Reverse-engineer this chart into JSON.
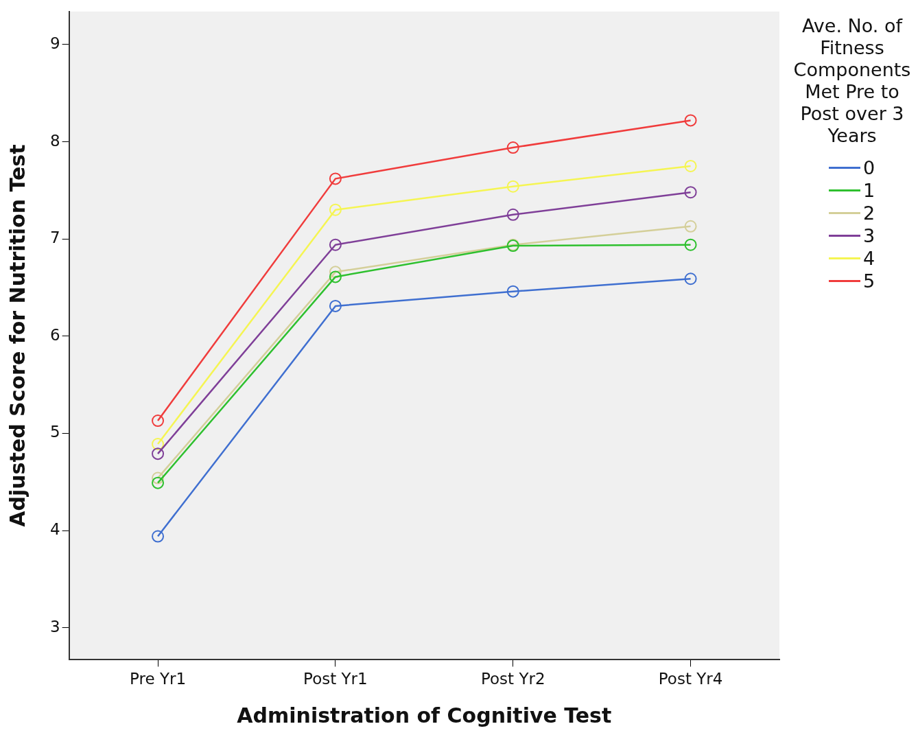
{
  "chart_data": {
    "type": "line",
    "xlabel": "Administration of Cognitive Test",
    "ylabel": "Adjusted Score for Nutrition Test",
    "legend_title": "Ave. No. of Fitness Components Met Pre to Post over 3 Years",
    "categories": [
      "Pre Yr1",
      "Post Yr1",
      "Post Yr2",
      "Post Yr4"
    ],
    "series": [
      {
        "name": "0",
        "color": "#3f6fd0",
        "values": [
          3.94,
          6.31,
          6.46,
          6.59
        ]
      },
      {
        "name": "1",
        "color": "#2ec02e",
        "values": [
          4.49,
          6.61,
          6.93,
          6.94
        ]
      },
      {
        "name": "2",
        "color": "#d4cf99",
        "values": [
          4.54,
          6.66,
          6.94,
          7.13
        ]
      },
      {
        "name": "3",
        "color": "#7f3f98",
        "values": [
          4.79,
          6.94,
          7.25,
          7.48
        ]
      },
      {
        "name": "4",
        "color": "#f5f552",
        "values": [
          4.89,
          7.3,
          7.54,
          7.75
        ]
      },
      {
        "name": "5",
        "color": "#f03c3c",
        "values": [
          5.13,
          7.62,
          7.94,
          8.22
        ]
      }
    ],
    "ylim": [
      2.67,
      9.34
    ],
    "yticks": [
      3,
      4,
      5,
      6,
      7,
      8,
      9
    ],
    "grid": false,
    "legend": "right",
    "marker": "circle",
    "line_style": "solid"
  }
}
